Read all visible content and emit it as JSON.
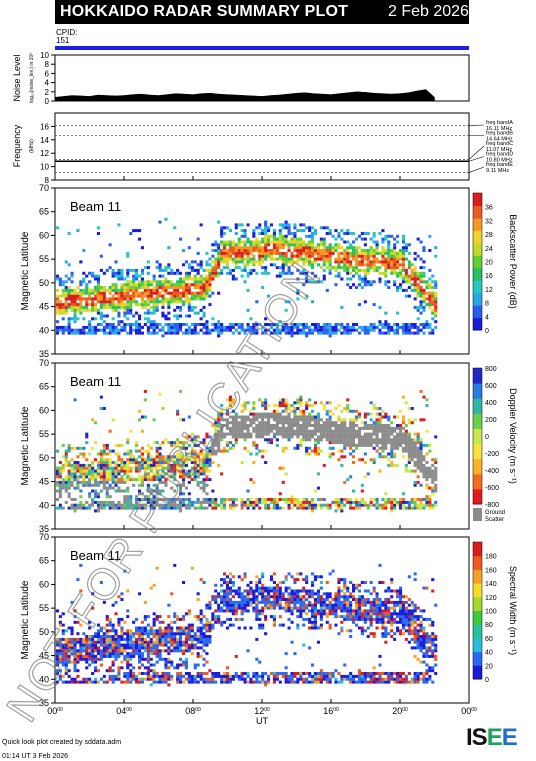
{
  "header": {
    "title": "HOKKAIDO RADAR SUMMARY PLOT",
    "date": "2 Feb 2026"
  },
  "cpid": {
    "label": "CPID:",
    "value": "151",
    "bar_color": "#1e1ee8"
  },
  "footer": {
    "line1": "Quick look plot created by sddata.adm",
    "line2": "01:14 UT  3 Feb 2026",
    "logo": "ISEE"
  },
  "watermark": "NOT FOR PUBLICATION",
  "chart_data": [
    {
      "type": "line",
      "ylabel": "Noise Level",
      "ylabel_sub": "log₁₀(noise_lev.) in 10³",
      "ylim": [
        0,
        10
      ],
      "yticks": [
        0,
        2,
        4,
        6,
        8,
        10
      ],
      "x_hours": [
        0,
        0.5,
        1,
        1.5,
        2,
        2.5,
        3,
        3.5,
        4,
        4.5,
        5,
        5.5,
        6,
        6.5,
        7,
        7.5,
        8,
        8.5,
        9,
        9.5,
        10,
        10.5,
        11,
        11.5,
        12,
        12.5,
        13,
        13.5,
        14,
        14.5,
        15,
        15.5,
        16,
        16.5,
        17,
        17.5,
        18,
        18.5,
        19,
        19.5,
        20,
        20.5,
        21,
        21.5,
        22
      ],
      "values": [
        0.8,
        1.0,
        1.2,
        1.1,
        1.0,
        1.3,
        1.2,
        1.1,
        1.2,
        1.4,
        1.5,
        1.3,
        1.2,
        1.4,
        1.6,
        1.5,
        1.4,
        1.6,
        1.7,
        1.5,
        1.4,
        1.3,
        1.2,
        1.1,
        1.0,
        1.2,
        1.3,
        1.5,
        1.7,
        1.8,
        1.6,
        1.5,
        1.4,
        1.6,
        1.8,
        2.0,
        1.9,
        1.7,
        1.6,
        1.5,
        1.6,
        1.8,
        2.2,
        2.5,
        0.8
      ]
    },
    {
      "type": "line",
      "ylabel": "Frequency",
      "ylabel_sub": "(MHz)",
      "ylim": [
        8,
        18
      ],
      "yticks": [
        8,
        10,
        12,
        14,
        16
      ],
      "freq_bands": [
        {
          "name": "freq bandA",
          "value": "16.11 MHz",
          "mhz": 16.11
        },
        {
          "name": "freq bandB",
          "value": "14.64 MHz",
          "mhz": 14.64
        },
        {
          "name": "freq bandC",
          "value": "11.07 MHz",
          "mhz": 11.07
        },
        {
          "name": "freq bandD",
          "value": "10.80 MHz",
          "mhz": 10.8
        },
        {
          "name": "freq bandE",
          "value": "9.11 MHz",
          "mhz": 9.11
        }
      ],
      "series": [
        {
          "values": [
            10.8,
            10.8
          ]
        }
      ]
    },
    {
      "type": "heatmap",
      "label": "Beam 11",
      "ylabel": "Magnetic Latitude",
      "ylim": [
        35,
        70
      ],
      "yticks": [
        35,
        40,
        45,
        50,
        55,
        60,
        65,
        70
      ],
      "colorbar": {
        "label": "Backscatter Power (dB)",
        "range": [
          0,
          40
        ],
        "ticks": [
          0,
          4,
          8,
          12,
          16,
          20,
          24,
          28,
          32,
          36
        ]
      }
    },
    {
      "type": "heatmap",
      "label": "Beam 11",
      "ylabel": "Magnetic Latitude",
      "ylim": [
        35,
        70
      ],
      "yticks": [
        35,
        40,
        45,
        50,
        55,
        60,
        65,
        70
      ],
      "colorbar": {
        "label": "Doppler Velocity (m s⁻¹)",
        "range": [
          -800,
          800
        ],
        "ticks": [
          -800,
          -600,
          -400,
          -200,
          0,
          200,
          400,
          600,
          800
        ]
      },
      "ground_scatter": {
        "label1": "Ground",
        "label2": "Scatter"
      }
    },
    {
      "type": "heatmap",
      "label": "Beam 11",
      "ylabel": "Magnetic Latitude",
      "ylim": [
        35,
        70
      ],
      "yticks": [
        35,
        40,
        45,
        50,
        55,
        60,
        65,
        70
      ],
      "colorbar": {
        "label": "Spectral Width (m s⁻¹)",
        "range": [
          0,
          200
        ],
        "ticks": [
          0,
          20,
          40,
          60,
          80,
          100,
          120,
          140,
          160,
          180
        ]
      }
    }
  ],
  "xaxis": {
    "xlabel": "UT",
    "xlim": [
      0,
      24
    ],
    "ticks": [
      "00",
      "04",
      "08",
      "12",
      "16",
      "20",
      "00"
    ]
  }
}
